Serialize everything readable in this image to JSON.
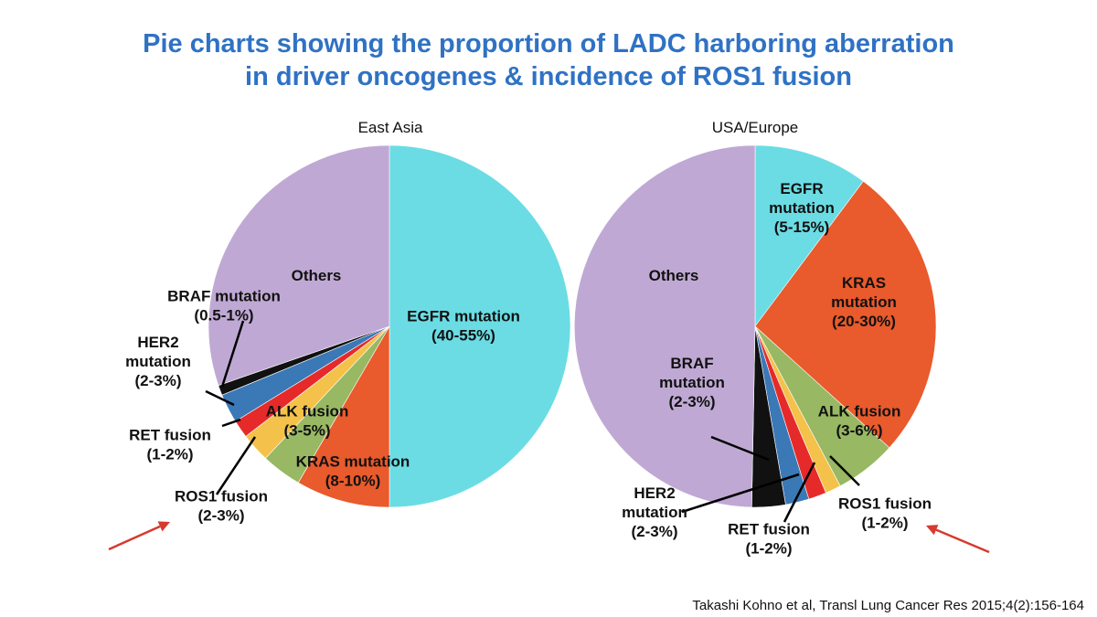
{
  "slide": {
    "title_line1": "Pie charts showing the proportion of LADC harboring aberration",
    "title_line2": "in driver oncogenes & incidence of ROS1 fusion",
    "citation": "Takashi Kohno et al, Transl Lung Cancer Res 2015;4(2):156-164"
  },
  "colors": {
    "egfr": "#6bdce4",
    "kras": "#e95a2c",
    "alk": "#98b863",
    "ros1": "#f4c24a",
    "ret": "#e62a2a",
    "her2": "#3a79b6",
    "braf": "#111111",
    "others": "#bfa9d4",
    "arrow": "#d63a30"
  },
  "chart_data": [
    {
      "type": "pie",
      "title": "East Asia",
      "slices": [
        {
          "key": "egfr",
          "label": "EGFR mutation",
          "range": "(40-55%)",
          "value": 50.0
        },
        {
          "key": "kras",
          "label": "KRAS mutation",
          "range": "(8-10%)",
          "value": 8.4
        },
        {
          "key": "alk",
          "label": "ALK fusion",
          "range": "(3-5%)",
          "value": 3.6
        },
        {
          "key": "ros1",
          "label": "ROS1 fusion",
          "range": "(2-3%)",
          "value": 2.6
        },
        {
          "key": "ret",
          "label": "RET fusion",
          "range": "(1-2%)",
          "value": 1.6
        },
        {
          "key": "her2",
          "label": "HER2 mutation",
          "label_lines": [
            "HER2",
            "mutation"
          ],
          "range": "(2-3%)",
          "value": 2.6
        },
        {
          "key": "braf",
          "label": "BRAF mutation",
          "range": "(0.5-1%)",
          "value": 0.9
        },
        {
          "key": "others",
          "label": "Others",
          "range": "",
          "value": 30.3
        }
      ]
    },
    {
      "type": "pie",
      "title": "USA/Europe",
      "slices": [
        {
          "key": "egfr",
          "label": "EGFR mutation",
          "label_lines": [
            "EGFR",
            "mutation"
          ],
          "range": "(5-15%)",
          "value": 10.2
        },
        {
          "key": "kras",
          "label": "KRAS mutation",
          "label_lines": [
            "KRAS",
            "mutation"
          ],
          "range": "(20-30%)",
          "value": 26.5
        },
        {
          "key": "alk",
          "label": "ALK fusion",
          "range": "(3-6%)",
          "value": 5.5
        },
        {
          "key": "ros1",
          "label": "ROS1 fusion",
          "range": "(1-2%)",
          "value": 1.4
        },
        {
          "key": "ret",
          "label": "RET fusion",
          "range": "(1-2%)",
          "value": 1.6
        },
        {
          "key": "her2",
          "label": "HER2 mutation",
          "label_lines": [
            "HER2",
            "mutation"
          ],
          "range": "(2-3%)",
          "value": 2.1
        },
        {
          "key": "braf",
          "label": "BRAF mutation",
          "label_lines": [
            "BRAF",
            "mutation"
          ],
          "range": "(2-3%)",
          "value": 3.0
        },
        {
          "key": "others",
          "label": "Others",
          "range": "",
          "value": 49.7
        }
      ]
    }
  ]
}
